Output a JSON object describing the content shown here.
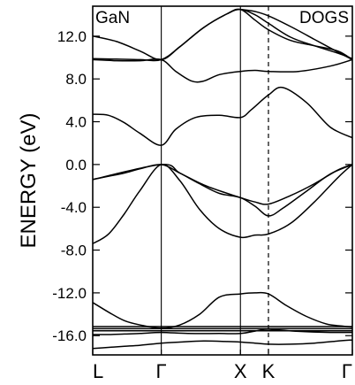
{
  "chart_data": {
    "type": "line",
    "material_label": "GaN",
    "method_label": "DOGS",
    "ylabel": "ENERGY (eV)",
    "ylim": [
      -17.8,
      14.8
    ],
    "yticks": [
      12.0,
      8.0,
      4.0,
      0.0,
      -4.0,
      -8.0,
      -12.0,
      -16.0
    ],
    "ytick_labels": [
      "12.0",
      "8.0",
      "4.0",
      "0.0",
      "-4.0",
      "-8.0",
      "-12.0",
      "-16.0"
    ],
    "kpoints": [
      {
        "label": "L",
        "pos": 0.0,
        "line": "none"
      },
      {
        "label": "Γ",
        "pos": 0.866,
        "line": "solid"
      },
      {
        "label": "X",
        "pos": 1.866,
        "line": "solid"
      },
      {
        "label": "K",
        "pos": 2.22,
        "line": "dashed"
      },
      {
        "label": "Γ",
        "pos": 3.28,
        "line": "none"
      }
    ],
    "grid": false,
    "series": [
      {
        "x": [
          0,
          0.2,
          0.4,
          0.6,
          0.866,
          1.1,
          1.4,
          1.7,
          1.866,
          2.05,
          2.22,
          2.5,
          2.8,
          3.1,
          3.28
        ],
        "values": [
          -17.2,
          -17.1,
          -17.0,
          -16.9,
          -16.7,
          -16.6,
          -16.5,
          -16.55,
          -16.6,
          -16.7,
          -16.8,
          -16.8,
          -16.7,
          -16.5,
          -16.4
        ]
      },
      {
        "x": [
          0,
          0.2,
          0.4,
          0.6,
          0.866,
          1.2,
          1.6,
          1.866,
          2.1,
          2.22,
          2.6,
          3.0,
          3.28
        ],
        "values": [
          -15.9,
          -15.9,
          -15.85,
          -15.8,
          -15.7,
          -15.8,
          -15.8,
          -15.8,
          -15.5,
          -15.4,
          -15.6,
          -15.7,
          -15.7
        ]
      },
      {
        "x": [
          0,
          0.866,
          1.866,
          2.22,
          3.28
        ],
        "values": [
          -15.15,
          -15.15,
          -15.15,
          -15.15,
          -15.15
        ]
      },
      {
        "x": [
          0,
          0.866,
          1.866,
          2.22,
          3.28
        ],
        "values": [
          -15.35,
          -15.35,
          -15.35,
          -15.35,
          -15.35
        ]
      },
      {
        "x": [
          0,
          0.866,
          1.866,
          2.22,
          3.28
        ],
        "values": [
          -15.55,
          -15.55,
          -15.55,
          -15.55,
          -15.55
        ]
      },
      {
        "x": [
          0,
          0.2,
          0.4,
          0.6,
          0.866,
          1.1,
          1.35,
          1.6,
          1.866,
          2.05,
          2.22,
          2.45,
          2.7,
          2.95,
          3.15,
          3.28
        ],
        "values": [
          -12.9,
          -13.8,
          -14.6,
          -15.0,
          -15.3,
          -15.0,
          -14.0,
          -12.4,
          -12.1,
          -12.0,
          -12.1,
          -13.2,
          -14.2,
          -14.9,
          -15.1,
          -15.2
        ]
      },
      {
        "x": [
          0,
          0.2,
          0.4,
          0.6,
          0.866,
          1.1,
          1.35,
          1.6,
          1.866,
          2.05,
          2.22,
          2.5,
          2.8,
          3.1,
          3.28
        ],
        "values": [
          -7.4,
          -6.5,
          -4.6,
          -2.4,
          0.0,
          -1.5,
          -4.2,
          -6.0,
          -6.8,
          -6.6,
          -6.5,
          -5.5,
          -3.5,
          -1.2,
          0.0
        ]
      },
      {
        "x": [
          0,
          0.2,
          0.4,
          0.6,
          0.866,
          1.1,
          1.35,
          1.6,
          1.866,
          2.05,
          2.22,
          2.4,
          2.7,
          3.0,
          3.28
        ],
        "values": [
          -1.4,
          -1.1,
          -0.8,
          -0.4,
          0.0,
          -0.8,
          -1.8,
          -2.7,
          -3.1,
          -3.9,
          -4.8,
          -4.1,
          -2.5,
          -0.9,
          0.0
        ]
      },
      {
        "x": [
          0,
          0.866,
          1.1,
          1.4,
          1.7,
          1.866,
          2.05,
          2.22,
          2.5,
          2.8,
          3.1,
          3.28
        ],
        "values": [
          -1.4,
          0.0,
          -0.8,
          -1.9,
          -2.7,
          -3.1,
          -3.5,
          -3.7,
          -2.9,
          -1.8,
          -0.5,
          0.0
        ]
      },
      {
        "x": [
          0,
          0.2,
          0.4,
          0.6,
          0.866,
          1.05,
          1.3,
          1.6,
          1.866,
          2.0,
          2.22,
          2.4,
          2.7,
          3.0,
          3.28
        ],
        "values": [
          4.7,
          4.6,
          3.9,
          2.9,
          1.8,
          3.3,
          4.4,
          4.6,
          4.4,
          5.1,
          6.5,
          7.2,
          5.8,
          3.5,
          2.5
        ]
      },
      {
        "x": [
          0,
          0.3,
          0.6,
          0.866,
          1.05,
          1.25,
          1.4,
          1.6,
          1.866,
          2.05,
          2.22,
          2.6,
          3.0,
          3.28
        ],
        "values": [
          9.8,
          9.7,
          9.7,
          9.8,
          8.7,
          7.8,
          7.8,
          8.4,
          8.7,
          8.8,
          8.7,
          8.7,
          9.2,
          9.8
        ]
      },
      {
        "x": [
          0,
          0.3,
          0.6,
          0.866,
          1.1,
          1.4,
          1.7,
          1.866,
          2.05,
          2.22,
          2.5,
          2.8,
          3.1,
          3.28
        ],
        "values": [
          12.0,
          11.5,
          10.6,
          9.8,
          11.0,
          12.8,
          14.1,
          14.5,
          13.5,
          12.6,
          11.6,
          11.1,
          10.6,
          9.8
        ]
      },
      {
        "x": [
          0,
          0.3,
          0.6,
          0.866,
          1.1,
          1.4,
          1.7,
          1.866,
          2.05,
          2.22,
          2.5,
          2.8,
          3.1,
          3.28
        ],
        "values": [
          9.9,
          9.85,
          9.8,
          9.8,
          11.0,
          12.8,
          14.1,
          14.5,
          14.0,
          13.2,
          11.9,
          11.1,
          10.4,
          9.9
        ]
      },
      {
        "x": [
          1.866,
          2.05,
          2.22,
          2.5,
          2.8,
          3.1,
          3.28
        ],
        "values": [
          14.5,
          14.3,
          13.9,
          12.9,
          11.7,
          10.5,
          9.8
        ]
      }
    ]
  }
}
